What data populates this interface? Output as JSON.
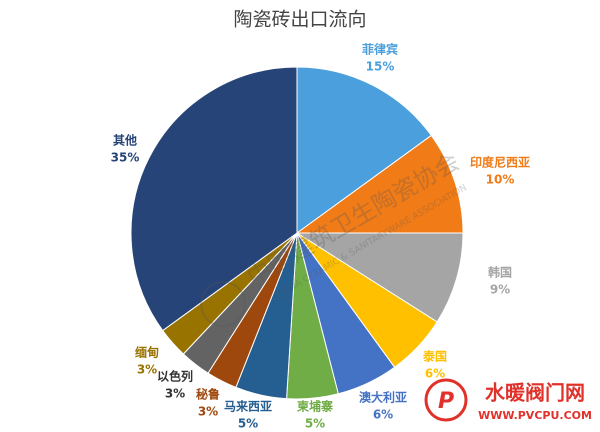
{
  "chart_data": {
    "type": "pie",
    "title": "陶瓷砖出口流向",
    "categories": [
      "菲律宾",
      "印度尼西亚",
      "韩国",
      "泰国",
      "澳大利亚",
      "柬埔寨",
      "马来西亚",
      "秘鲁",
      "以色列",
      "缅甸",
      "其他"
    ],
    "values": [
      15,
      10,
      9,
      6,
      6,
      5,
      5,
      3,
      3,
      3,
      35
    ],
    "value_labels": [
      "15%",
      "10%",
      "9%",
      "6%",
      "6%",
      "5%",
      "5%",
      "3%",
      "3%",
      "3%",
      "35%"
    ],
    "colors": [
      "#4a9fdc",
      "#f07b17",
      "#a5a5a5",
      "#ffc000",
      "#4472c4",
      "#70ad47",
      "#255e91",
      "#9e480e",
      "#636363",
      "#997300",
      "#264478"
    ]
  },
  "watermark": {
    "name": "中国建筑卫生陶瓷协会",
    "english": "CHINA CERAMIC & SANITARYWARE ASSOCIATION"
  },
  "logo": {
    "name": "水暖阀门网",
    "url": "WWW.PVCPU.COM"
  }
}
